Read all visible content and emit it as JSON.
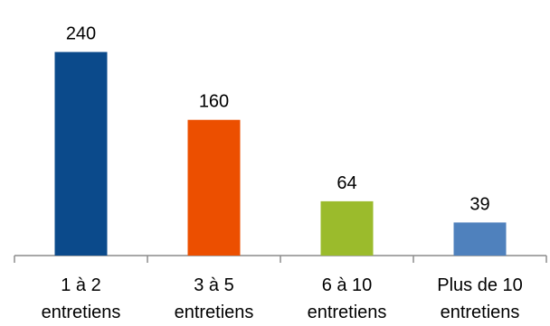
{
  "chart_data": {
    "type": "bar",
    "title": "",
    "xlabel": "",
    "ylabel": "",
    "grid": false,
    "categories": [
      [
        "1 à 2",
        "entretiens"
      ],
      [
        "3 à 5",
        "entretiens"
      ],
      [
        "6 à 10",
        "entretiens"
      ],
      [
        "Plus de 10",
        "entretiens"
      ]
    ],
    "values": [
      240,
      160,
      64,
      39
    ],
    "data_labels": [
      "240",
      "160",
      "64",
      "39"
    ],
    "colors": [
      "#0b4a8b",
      "#ec4f00",
      "#9bbb2c",
      "#4f81bd"
    ],
    "ylim": [
      0,
      280
    ]
  }
}
